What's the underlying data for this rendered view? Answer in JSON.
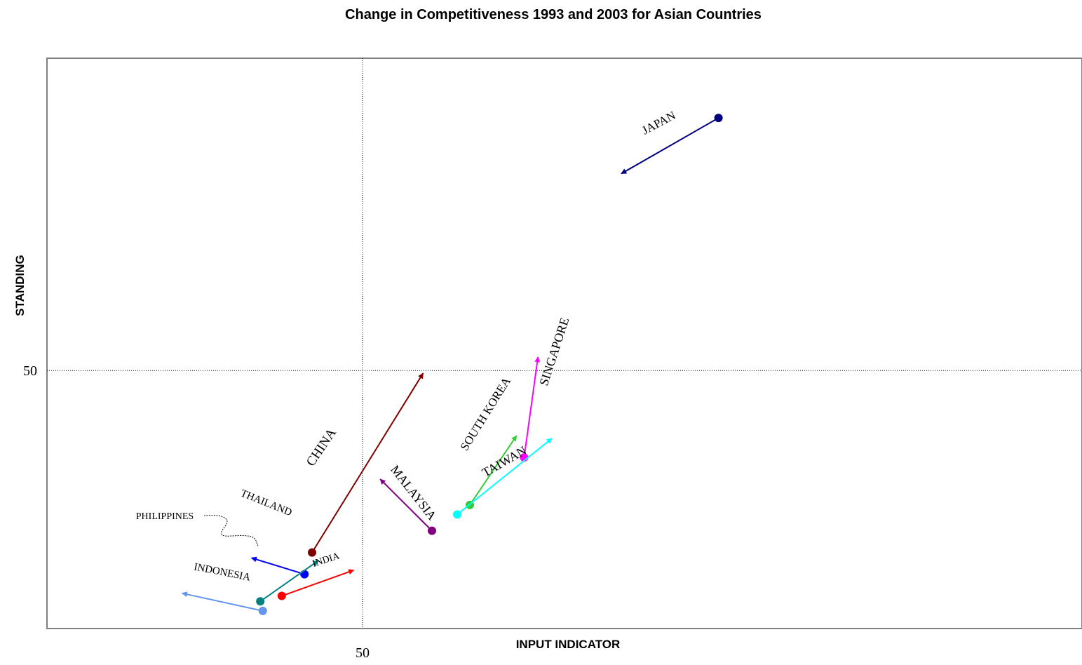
{
  "chart_data": {
    "type": "scatter",
    "title": "Change in Competitiveness 1993 and 2003 for Asian Countries",
    "xlabel": "INPUT INDICATOR",
    "ylabel": "STANDING",
    "xlim": [
      25,
      107
    ],
    "ylim": [
      31,
      73
    ],
    "x_ticks": [
      50
    ],
    "y_ticks": [
      50
    ],
    "reference_lines": {
      "x": 50,
      "y": 50
    },
    "grid": false,
    "legend": "none",
    "series": [
      {
        "name": "JAPAN",
        "color": "#000080",
        "from": {
          "x": 78.2,
          "y": 68.6
        },
        "to": {
          "x": 70.5,
          "y": 64.5
        }
      },
      {
        "name": "SINGAPORE",
        "color": "#ff00ff",
        "from": {
          "x": 62.8,
          "y": 43.6
        },
        "to": {
          "x": 63.9,
          "y": 51.0
        }
      },
      {
        "name": "SOUTH KOREA",
        "color": "#33cc33",
        "from": {
          "x": 58.5,
          "y": 40.1
        },
        "to": {
          "x": 62.2,
          "y": 45.2
        }
      },
      {
        "name": "TAIWAN",
        "color": "#00ffff",
        "from": {
          "x": 57.5,
          "y": 39.4
        },
        "to": {
          "x": 65.0,
          "y": 45.0
        }
      },
      {
        "name": "MALAYSIA",
        "color": "#800080",
        "from": {
          "x": 55.5,
          "y": 38.2
        },
        "to": {
          "x": 51.4,
          "y": 42.0
        }
      },
      {
        "name": "CHINA",
        "color": "#800000",
        "from": {
          "x": 46.0,
          "y": 36.6
        },
        "to": {
          "x": 54.8,
          "y": 49.8
        }
      },
      {
        "name": "THAILAND",
        "color": "#0000ff",
        "from": {
          "x": 45.4,
          "y": 35.0
        },
        "to": {
          "x": 41.2,
          "y": 36.2
        }
      },
      {
        "name": "PHILIPPINES",
        "color": "#008080",
        "from": {
          "x": 41.9,
          "y": 33.0
        },
        "to": {
          "x": 46.5,
          "y": 36.0
        }
      },
      {
        "name": "INDIA",
        "color": "#ff0000",
        "from": {
          "x": 43.6,
          "y": 33.4
        },
        "to": {
          "x": 49.3,
          "y": 35.3
        }
      },
      {
        "name": "INDONESIA",
        "color": "#6495ed",
        "from": {
          "x": 42.1,
          "y": 32.3
        },
        "to": {
          "x": 35.7,
          "y": 33.6
        }
      }
    ]
  }
}
